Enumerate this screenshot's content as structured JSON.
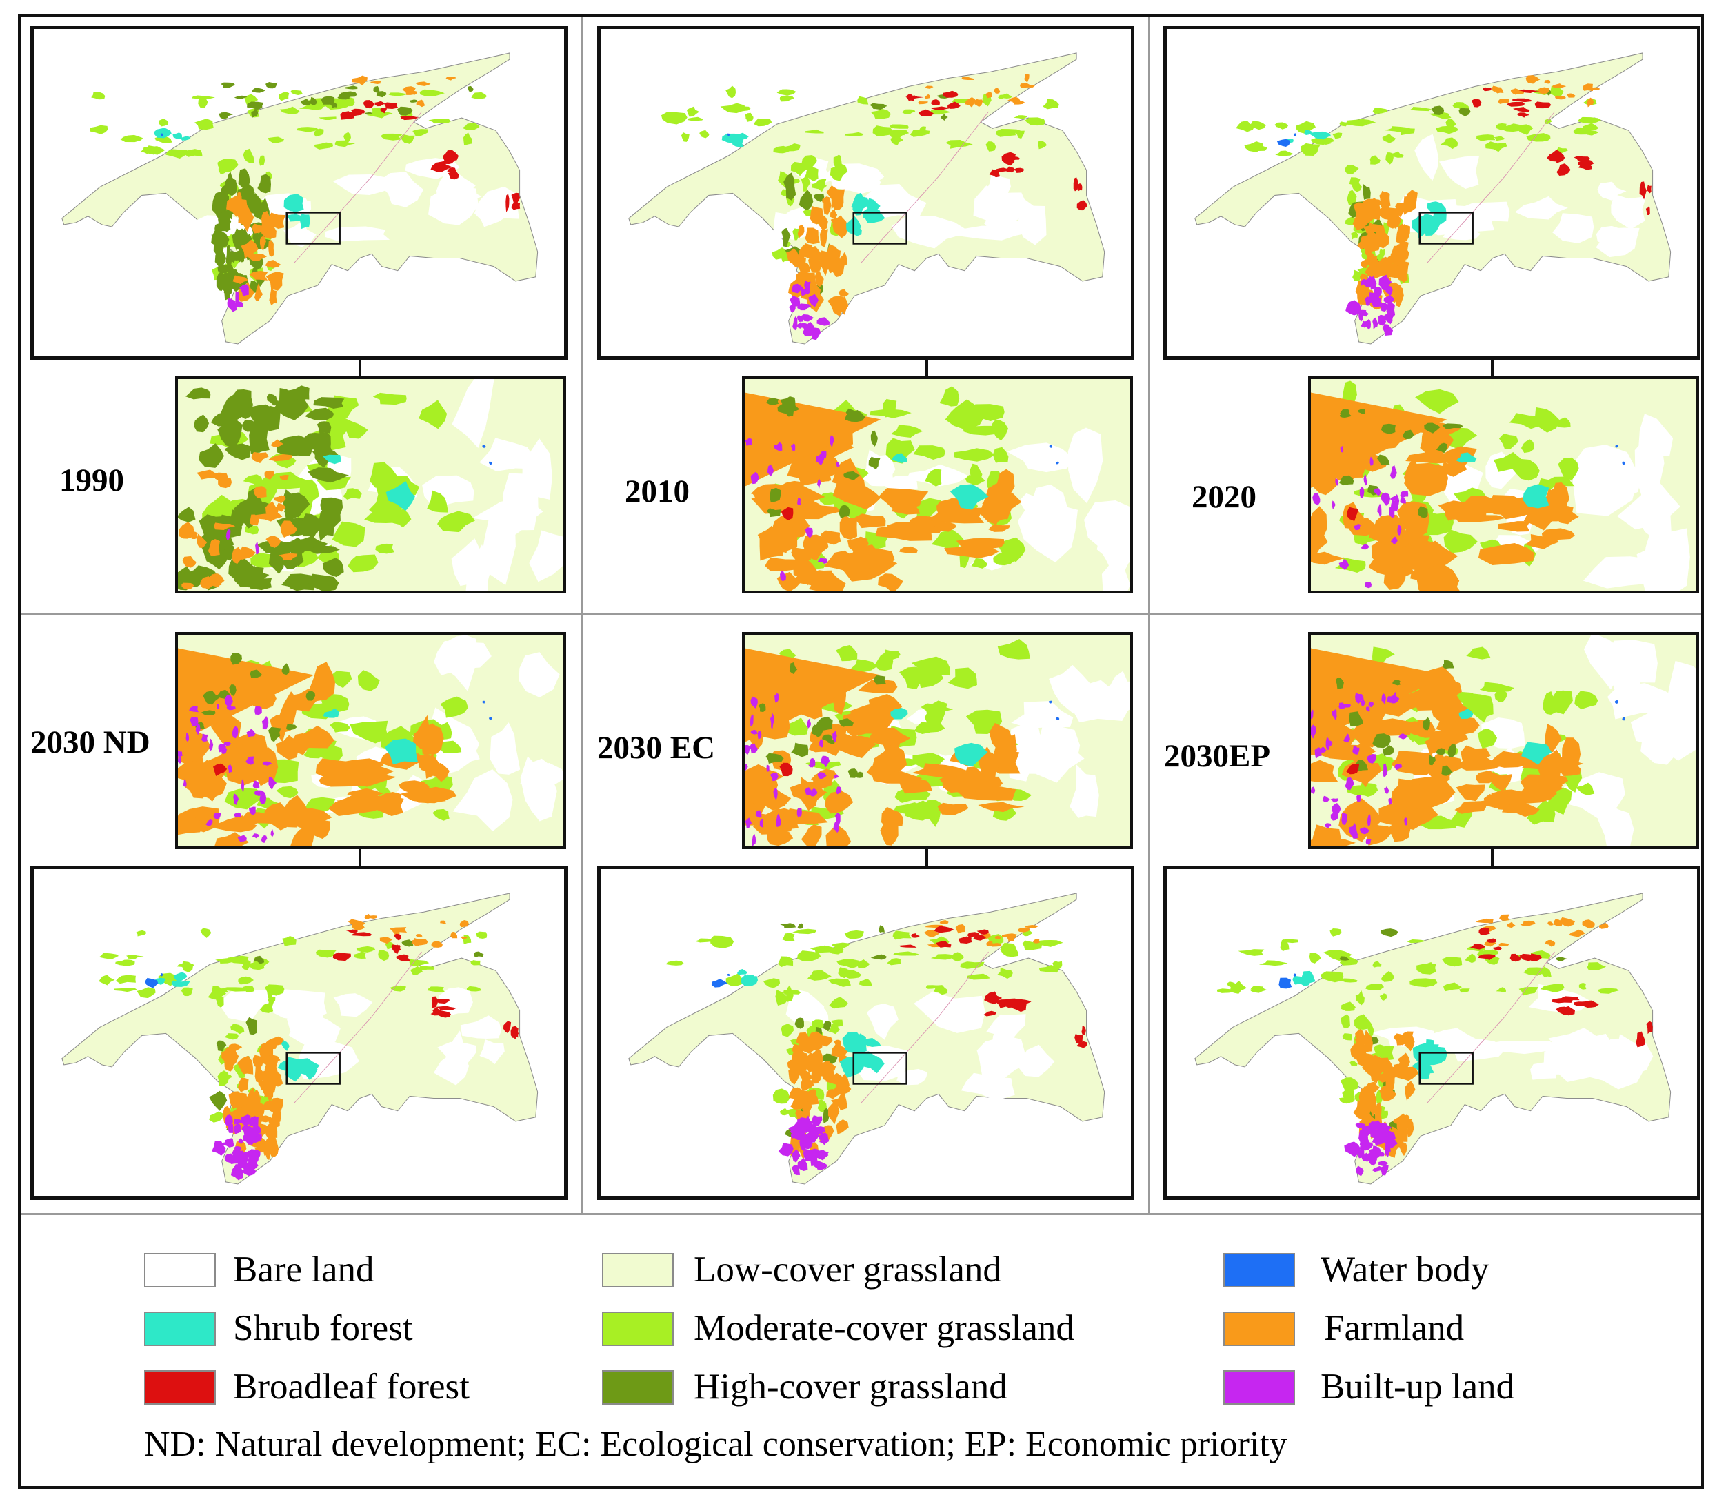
{
  "figure": {
    "panels": [
      {
        "label": "1990",
        "stage": "early"
      },
      {
        "label": "2010",
        "stage": "mid"
      },
      {
        "label": "2020",
        "stage": "late"
      },
      {
        "label": "2030 ND",
        "stage": "nd"
      },
      {
        "label": "2030 EC",
        "stage": "ec"
      },
      {
        "label": "2030EP",
        "stage": "ep"
      }
    ]
  },
  "legend": {
    "items": [
      {
        "label": "Bare land",
        "color": "#ffffff"
      },
      {
        "label": "Low-cover grassland",
        "color": "#f1fbd0"
      },
      {
        "label": "Water body",
        "color": "#1e6ff5"
      },
      {
        "label": "Shrub forest",
        "color": "#2ee8c8"
      },
      {
        "label": "Moderate-cover grassland",
        "color": "#a8ef24"
      },
      {
        "label": "Farmland",
        "color": "#f99a1a"
      },
      {
        "label": "Broadleaf forest",
        "color": "#dd1010"
      },
      {
        "label": "High-cover grassland",
        "color": "#6e9a16"
      },
      {
        "label": "Built-up land",
        "color": "#c626f0"
      }
    ],
    "note": "ND: Natural development;  EC: Ecological conservation;  EP: Economic priority"
  }
}
